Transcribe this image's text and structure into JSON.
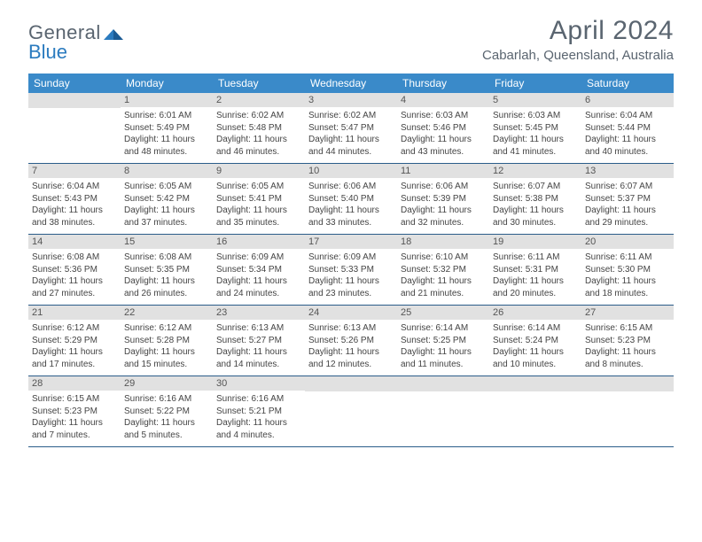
{
  "brand": {
    "part1": "General",
    "part2": "Blue"
  },
  "title": "April 2024",
  "location": "Cabarlah, Queensland, Australia",
  "colors": {
    "header_bg": "#3a8ac9",
    "header_text": "#ffffff",
    "daynum_bg": "#e1e1e1",
    "week_border": "#2b5d8a",
    "body_text": "#444444",
    "title_text": "#5a6570",
    "brand_blue": "#2b7bbf"
  },
  "typography": {
    "title_fontsize": 30,
    "location_fontsize": 15,
    "dayheader_fontsize": 12,
    "daynum_fontsize": 11,
    "cell_fontsize": 10
  },
  "day_names": [
    "Sunday",
    "Monday",
    "Tuesday",
    "Wednesday",
    "Thursday",
    "Friday",
    "Saturday"
  ],
  "grid": {
    "leading_blanks": 1,
    "days": [
      {
        "n": 1,
        "sr": "6:01 AM",
        "ss": "5:49 PM",
        "dl": "11 hours and 48 minutes."
      },
      {
        "n": 2,
        "sr": "6:02 AM",
        "ss": "5:48 PM",
        "dl": "11 hours and 46 minutes."
      },
      {
        "n": 3,
        "sr": "6:02 AM",
        "ss": "5:47 PM",
        "dl": "11 hours and 44 minutes."
      },
      {
        "n": 4,
        "sr": "6:03 AM",
        "ss": "5:46 PM",
        "dl": "11 hours and 43 minutes."
      },
      {
        "n": 5,
        "sr": "6:03 AM",
        "ss": "5:45 PM",
        "dl": "11 hours and 41 minutes."
      },
      {
        "n": 6,
        "sr": "6:04 AM",
        "ss": "5:44 PM",
        "dl": "11 hours and 40 minutes."
      },
      {
        "n": 7,
        "sr": "6:04 AM",
        "ss": "5:43 PM",
        "dl": "11 hours and 38 minutes."
      },
      {
        "n": 8,
        "sr": "6:05 AM",
        "ss": "5:42 PM",
        "dl": "11 hours and 37 minutes."
      },
      {
        "n": 9,
        "sr": "6:05 AM",
        "ss": "5:41 PM",
        "dl": "11 hours and 35 minutes."
      },
      {
        "n": 10,
        "sr": "6:06 AM",
        "ss": "5:40 PM",
        "dl": "11 hours and 33 minutes."
      },
      {
        "n": 11,
        "sr": "6:06 AM",
        "ss": "5:39 PM",
        "dl": "11 hours and 32 minutes."
      },
      {
        "n": 12,
        "sr": "6:07 AM",
        "ss": "5:38 PM",
        "dl": "11 hours and 30 minutes."
      },
      {
        "n": 13,
        "sr": "6:07 AM",
        "ss": "5:37 PM",
        "dl": "11 hours and 29 minutes."
      },
      {
        "n": 14,
        "sr": "6:08 AM",
        "ss": "5:36 PM",
        "dl": "11 hours and 27 minutes."
      },
      {
        "n": 15,
        "sr": "6:08 AM",
        "ss": "5:35 PM",
        "dl": "11 hours and 26 minutes."
      },
      {
        "n": 16,
        "sr": "6:09 AM",
        "ss": "5:34 PM",
        "dl": "11 hours and 24 minutes."
      },
      {
        "n": 17,
        "sr": "6:09 AM",
        "ss": "5:33 PM",
        "dl": "11 hours and 23 minutes."
      },
      {
        "n": 18,
        "sr": "6:10 AM",
        "ss": "5:32 PM",
        "dl": "11 hours and 21 minutes."
      },
      {
        "n": 19,
        "sr": "6:11 AM",
        "ss": "5:31 PM",
        "dl": "11 hours and 20 minutes."
      },
      {
        "n": 20,
        "sr": "6:11 AM",
        "ss": "5:30 PM",
        "dl": "11 hours and 18 minutes."
      },
      {
        "n": 21,
        "sr": "6:12 AM",
        "ss": "5:29 PM",
        "dl": "11 hours and 17 minutes."
      },
      {
        "n": 22,
        "sr": "6:12 AM",
        "ss": "5:28 PM",
        "dl": "11 hours and 15 minutes."
      },
      {
        "n": 23,
        "sr": "6:13 AM",
        "ss": "5:27 PM",
        "dl": "11 hours and 14 minutes."
      },
      {
        "n": 24,
        "sr": "6:13 AM",
        "ss": "5:26 PM",
        "dl": "11 hours and 12 minutes."
      },
      {
        "n": 25,
        "sr": "6:14 AM",
        "ss": "5:25 PM",
        "dl": "11 hours and 11 minutes."
      },
      {
        "n": 26,
        "sr": "6:14 AM",
        "ss": "5:24 PM",
        "dl": "11 hours and 10 minutes."
      },
      {
        "n": 27,
        "sr": "6:15 AM",
        "ss": "5:23 PM",
        "dl": "11 hours and 8 minutes."
      },
      {
        "n": 28,
        "sr": "6:15 AM",
        "ss": "5:23 PM",
        "dl": "11 hours and 7 minutes."
      },
      {
        "n": 29,
        "sr": "6:16 AM",
        "ss": "5:22 PM",
        "dl": "11 hours and 5 minutes."
      },
      {
        "n": 30,
        "sr": "6:16 AM",
        "ss": "5:21 PM",
        "dl": "11 hours and 4 minutes."
      }
    ]
  },
  "labels": {
    "sunrise": "Sunrise:",
    "sunset": "Sunset:",
    "daylight": "Daylight:"
  }
}
